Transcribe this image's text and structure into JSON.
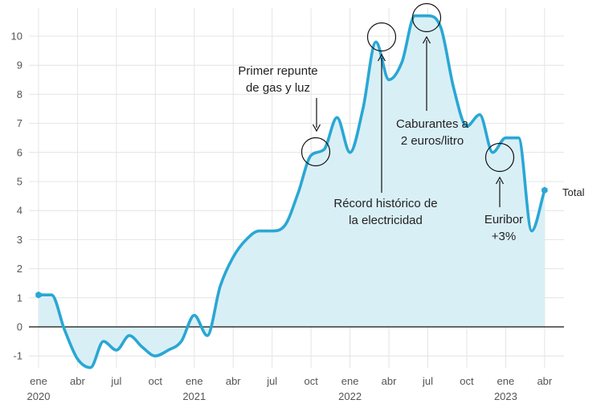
{
  "chart_data": {
    "type": "area",
    "title": "",
    "xlabel": "",
    "ylabel": "",
    "ylim": [
      -1.4,
      10.9
    ],
    "y_ticks": [
      "-1",
      "0",
      "1",
      "2",
      "3",
      "4",
      "5",
      "6",
      "7",
      "8",
      "9",
      "10"
    ],
    "x_ticks": [
      {
        "month": 0,
        "label": "ene",
        "year": "2020"
      },
      {
        "month": 3,
        "label": "abr",
        "year": ""
      },
      {
        "month": 6,
        "label": "jul",
        "year": ""
      },
      {
        "month": 9,
        "label": "oct",
        "year": ""
      },
      {
        "month": 12,
        "label": "ene",
        "year": "2021"
      },
      {
        "month": 15,
        "label": "abr",
        "year": ""
      },
      {
        "month": 18,
        "label": "jul",
        "year": ""
      },
      {
        "month": 21,
        "label": "oct",
        "year": ""
      },
      {
        "month": 24,
        "label": "ene",
        "year": "2022"
      },
      {
        "month": 27,
        "label": "abr",
        "year": ""
      },
      {
        "month": 30,
        "label": "jul",
        "year": ""
      },
      {
        "month": 33,
        "label": "oct",
        "year": ""
      },
      {
        "month": 36,
        "label": "ene",
        "year": "2023"
      },
      {
        "month": 39,
        "label": "abr",
        "year": ""
      }
    ],
    "series": [
      {
        "name": "Total",
        "color": "#2aa7d4",
        "fill": "#d9eff6",
        "x": [
          0,
          1,
          2,
          3,
          4,
          5,
          6,
          7,
          8,
          9,
          10,
          11,
          12,
          13,
          14,
          15,
          16,
          17,
          18,
          19,
          20,
          21,
          22,
          23,
          24,
          25,
          26,
          27,
          28,
          29,
          30,
          31,
          32,
          33,
          34,
          35,
          36,
          37,
          38,
          39
        ],
        "values": [
          1.1,
          1.1,
          -0.1,
          -1.1,
          -1.4,
          -0.5,
          -0.8,
          -0.3,
          -0.7,
          -1.0,
          -0.8,
          -0.5,
          0.4,
          -0.3,
          1.4,
          2.4,
          3.0,
          3.3,
          3.3,
          3.5,
          4.6,
          5.9,
          6.1,
          7.2,
          6.0,
          7.5,
          9.8,
          8.5,
          9.1,
          10.7,
          10.7,
          10.3,
          8.2,
          6.9,
          7.3,
          6.0,
          6.5,
          6.5,
          3.3,
          4.7
        ]
      }
    ],
    "end_label": "Total",
    "annotations": [
      {
        "id": "primer-repunte",
        "lines": [
          "Primer repunte",
          "de gas y luz"
        ],
        "x": 21.0,
        "y": 6.0
      },
      {
        "id": "record-electricidad",
        "lines": [
          "Récord histórico de",
          "la electricidad"
        ],
        "x": 25.7,
        "y": 9.9
      },
      {
        "id": "carburantes",
        "lines": [
          "Caburantes a",
          "2 euros/litro"
        ],
        "x": 29.0,
        "y": 10.7
      },
      {
        "id": "euribor",
        "lines": [
          "Euribor",
          "+3%"
        ],
        "x": 35.0,
        "y": 5.8
      }
    ]
  }
}
